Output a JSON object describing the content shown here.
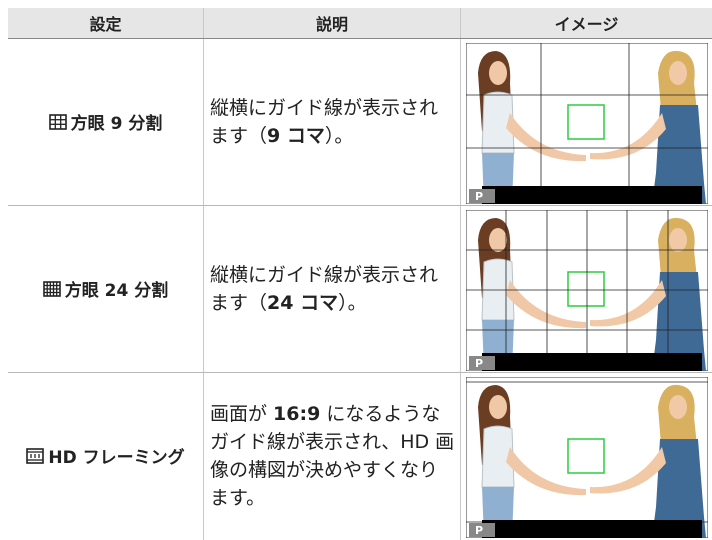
{
  "table": {
    "header": [
      "設定",
      "説明",
      "イメージ"
    ],
    "rows": [
      {
        "setting": "方眼 9 分割",
        "description": [
          {
            "text": "縦横にガイド線が表示されます（",
            "bold": false
          },
          {
            "text": "9 コマ",
            "bold": true
          },
          {
            "text": "）。",
            "bold": false
          }
        ],
        "badge": "P"
      },
      {
        "setting": "方眼 24 分割",
        "description": [
          {
            "text": "縦横にガイド線が表示されます（",
            "bold": false
          },
          {
            "text": "24 コマ",
            "bold": true
          },
          {
            "text": "）。",
            "bold": false
          }
        ],
        "badge": "P"
      },
      {
        "setting": "HD フレーミング",
        "description": [
          {
            "text": "画面が ",
            "bold": false
          },
          {
            "text": "16:9",
            "bold": true
          },
          {
            "text": " になるようなガイド線が表示され、HD 画像の構図が決めやすくなります。",
            "bold": false
          }
        ],
        "badge": "P"
      }
    ]
  }
}
